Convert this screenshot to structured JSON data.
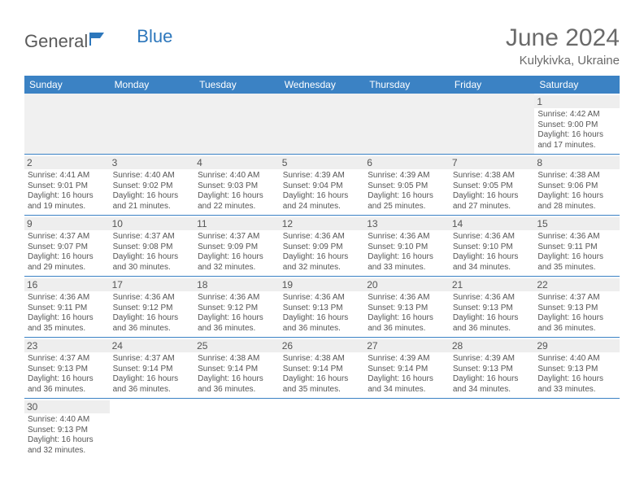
{
  "logo": {
    "text1": "General",
    "text2": "Blue"
  },
  "title": "June 2024",
  "location": "Kulykivka, Ukraine",
  "day_headers": [
    "Sunday",
    "Monday",
    "Tuesday",
    "Wednesday",
    "Thursday",
    "Friday",
    "Saturday"
  ],
  "colors": {
    "header_bg": "#3b82c4",
    "header_text": "#ffffff",
    "grid_line": "#3b82c4",
    "day_num_bg": "#eeeeee",
    "text": "#555555",
    "title_text": "#6a6a6a",
    "logo_gray": "#5a5a5a",
    "logo_blue": "#2d77bc"
  },
  "label_sunrise": "Sunrise: ",
  "label_sunset": "Sunset: ",
  "label_daylight1": "Daylight: ",
  "label_daylight2": " hours",
  "label_daylight3": "and ",
  "label_daylight4": " minutes.",
  "weeks": [
    [
      {
        "empty": true
      },
      {
        "empty": true
      },
      {
        "empty": true
      },
      {
        "empty": true
      },
      {
        "empty": true
      },
      {
        "empty": true
      },
      {
        "num": "1",
        "sunrise": "4:42 AM",
        "sunset": "9:00 PM",
        "dh": "16",
        "dm": "17"
      }
    ],
    [
      {
        "num": "2",
        "sunrise": "4:41 AM",
        "sunset": "9:01 PM",
        "dh": "16",
        "dm": "19"
      },
      {
        "num": "3",
        "sunrise": "4:40 AM",
        "sunset": "9:02 PM",
        "dh": "16",
        "dm": "21"
      },
      {
        "num": "4",
        "sunrise": "4:40 AM",
        "sunset": "9:03 PM",
        "dh": "16",
        "dm": "22"
      },
      {
        "num": "5",
        "sunrise": "4:39 AM",
        "sunset": "9:04 PM",
        "dh": "16",
        "dm": "24"
      },
      {
        "num": "6",
        "sunrise": "4:39 AM",
        "sunset": "9:05 PM",
        "dh": "16",
        "dm": "25"
      },
      {
        "num": "7",
        "sunrise": "4:38 AM",
        "sunset": "9:05 PM",
        "dh": "16",
        "dm": "27"
      },
      {
        "num": "8",
        "sunrise": "4:38 AM",
        "sunset": "9:06 PM",
        "dh": "16",
        "dm": "28"
      }
    ],
    [
      {
        "num": "9",
        "sunrise": "4:37 AM",
        "sunset": "9:07 PM",
        "dh": "16",
        "dm": "29"
      },
      {
        "num": "10",
        "sunrise": "4:37 AM",
        "sunset": "9:08 PM",
        "dh": "16",
        "dm": "30"
      },
      {
        "num": "11",
        "sunrise": "4:37 AM",
        "sunset": "9:09 PM",
        "dh": "16",
        "dm": "32"
      },
      {
        "num": "12",
        "sunrise": "4:36 AM",
        "sunset": "9:09 PM",
        "dh": "16",
        "dm": "32"
      },
      {
        "num": "13",
        "sunrise": "4:36 AM",
        "sunset": "9:10 PM",
        "dh": "16",
        "dm": "33"
      },
      {
        "num": "14",
        "sunrise": "4:36 AM",
        "sunset": "9:10 PM",
        "dh": "16",
        "dm": "34"
      },
      {
        "num": "15",
        "sunrise": "4:36 AM",
        "sunset": "9:11 PM",
        "dh": "16",
        "dm": "35"
      }
    ],
    [
      {
        "num": "16",
        "sunrise": "4:36 AM",
        "sunset": "9:11 PM",
        "dh": "16",
        "dm": "35"
      },
      {
        "num": "17",
        "sunrise": "4:36 AM",
        "sunset": "9:12 PM",
        "dh": "16",
        "dm": "36"
      },
      {
        "num": "18",
        "sunrise": "4:36 AM",
        "sunset": "9:12 PM",
        "dh": "16",
        "dm": "36"
      },
      {
        "num": "19",
        "sunrise": "4:36 AM",
        "sunset": "9:13 PM",
        "dh": "16",
        "dm": "36"
      },
      {
        "num": "20",
        "sunrise": "4:36 AM",
        "sunset": "9:13 PM",
        "dh": "16",
        "dm": "36"
      },
      {
        "num": "21",
        "sunrise": "4:36 AM",
        "sunset": "9:13 PM",
        "dh": "16",
        "dm": "36"
      },
      {
        "num": "22",
        "sunrise": "4:37 AM",
        "sunset": "9:13 PM",
        "dh": "16",
        "dm": "36"
      }
    ],
    [
      {
        "num": "23",
        "sunrise": "4:37 AM",
        "sunset": "9:13 PM",
        "dh": "16",
        "dm": "36"
      },
      {
        "num": "24",
        "sunrise": "4:37 AM",
        "sunset": "9:14 PM",
        "dh": "16",
        "dm": "36"
      },
      {
        "num": "25",
        "sunrise": "4:38 AM",
        "sunset": "9:14 PM",
        "dh": "16",
        "dm": "36"
      },
      {
        "num": "26",
        "sunrise": "4:38 AM",
        "sunset": "9:14 PM",
        "dh": "16",
        "dm": "35"
      },
      {
        "num": "27",
        "sunrise": "4:39 AM",
        "sunset": "9:14 PM",
        "dh": "16",
        "dm": "34"
      },
      {
        "num": "28",
        "sunrise": "4:39 AM",
        "sunset": "9:13 PM",
        "dh": "16",
        "dm": "34"
      },
      {
        "num": "29",
        "sunrise": "4:40 AM",
        "sunset": "9:13 PM",
        "dh": "16",
        "dm": "33"
      }
    ],
    [
      {
        "num": "30",
        "sunrise": "4:40 AM",
        "sunset": "9:13 PM",
        "dh": "16",
        "dm": "32"
      },
      {
        "empty": true,
        "trailing": true
      },
      {
        "empty": true,
        "trailing": true
      },
      {
        "empty": true,
        "trailing": true
      },
      {
        "empty": true,
        "trailing": true
      },
      {
        "empty": true,
        "trailing": true
      },
      {
        "empty": true,
        "trailing": true
      }
    ]
  ]
}
